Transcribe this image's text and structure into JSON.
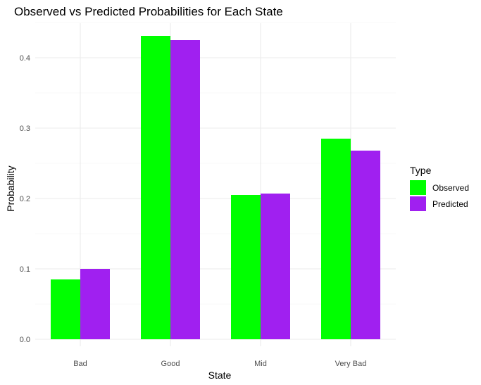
{
  "chart_data": {
    "type": "bar",
    "title": "Observed vs Predicted Probabilities for Each State",
    "xlabel": "State",
    "ylabel": "Probability",
    "categories": [
      "Bad",
      "Good",
      "Mid",
      "Very Bad"
    ],
    "series": [
      {
        "name": "Observed",
        "color": "#00ff00",
        "values": [
          0.085,
          0.431,
          0.205,
          0.285
        ]
      },
      {
        "name": "Predicted",
        "color": "#a020f0",
        "values": [
          0.1,
          0.425,
          0.207,
          0.268
        ]
      }
    ],
    "ylim": [
      0,
      0.45
    ],
    "yticks": [
      "0.0",
      "0.1",
      "0.2",
      "0.3",
      "0.4"
    ],
    "ytick_values": [
      0.0,
      0.1,
      0.2,
      0.3,
      0.4
    ],
    "grid": true,
    "legend": {
      "title": "Type",
      "placement": "right"
    }
  }
}
